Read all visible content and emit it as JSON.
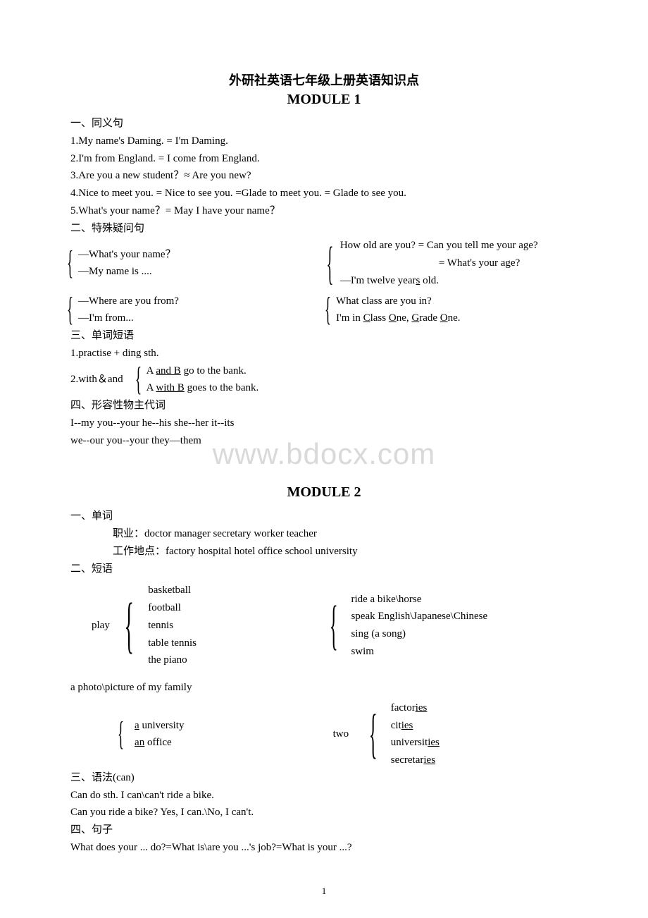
{
  "doc_title_cn": "外研社英语七年级上册英语知识点",
  "module1_title": "MODULE 1",
  "module2_title": "MODULE 2",
  "watermark": "www.bdocx.com",
  "page_number": "1",
  "m1": {
    "sec1_label": "一、同义句",
    "s1_1": "1.My name's Daming. = I'm Daming.",
    "s1_2": "2.I'm from England. = I come from England.",
    "s1_3": "3.Are you a new student？≈ Are you new?",
    "s1_4": "4.Nice to meet you. = Nice to see you. =Glade to meet you. = Glade to see you.",
    "s1_5": "5.What's your name？= May I have your name？",
    "sec2_label": "二、特殊疑问句",
    "q1a": "—What's your name？",
    "q1b": "—My name is ....",
    "q2a": "How old are you? = Can you tell me your age?",
    "q2b": "= What's your age?",
    "q2c_pre": "—I'm twelve year",
    "q2c_u": "s",
    "q2c_post": " old.",
    "q3a": "—Where are you from?",
    "q3b": "—I'm from...",
    "q4a": "What class are you in?",
    "q4b_pre": "I'm in ",
    "q4b_c": "C",
    "q4b_mid1": "lass ",
    "q4b_o1": "O",
    "q4b_mid2": "ne, ",
    "q4b_g": "G",
    "q4b_mid3": "rade ",
    "q4b_o2": "O",
    "q4b_end": "ne.",
    "sec3_label": "三、单词短语",
    "s3_1": "1.practise + ding sth.",
    "s3_2_pre": "2.with＆and",
    "s3_2a_pre": "A ",
    "s3_2a_u": "and B",
    "s3_2a_post": " go to the bank.",
    "s3_2b_pre": "A ",
    "s3_2b_u": "with B",
    "s3_2b_post": " goes to the bank.",
    "sec4_label": "四、形容性物主代词",
    "s4_1": "I--my   you--your   he--his   she--her   it--its",
    "s4_2": "we--our   you--your   they—them"
  },
  "m2": {
    "sec1_label": "一、单词",
    "s1_1_label": "职业：",
    "s1_1": "doctor manager secretary worker teacher",
    "s1_2_label": "工作地点：",
    "s1_2": "factory hospital hotel office school university",
    "sec2_label": "二、短语",
    "play_label": "play",
    "play_items": [
      "basketball",
      "football",
      "tennis",
      "table tennis",
      "the piano"
    ],
    "verb_items": [
      "ride a bike\\horse",
      "speak English\\Japanese\\Chinese",
      "sing (a song)",
      "swim"
    ],
    "photo_line": "a photo\\picture of my family",
    "art_a_u": "a",
    "art_a_post": " university",
    "art_an_u": "an",
    "art_an_post": " office",
    "two_label": "two",
    "two_items": [
      {
        "pre": "factor",
        "u": "ies"
      },
      {
        "pre": "cit",
        "u": "ies"
      },
      {
        "pre": "universit",
        "u": "ies"
      },
      {
        "pre": "secretar",
        "u": "ies"
      }
    ],
    "sec3_label": "三、语法(can)",
    "s3_1": "Can do sth.       I can\\can't ride a bike.",
    "s3_2": "Can you ride a bike?        Yes, I can.\\No, I can't.",
    "sec4_label": "四、句子",
    "s4_1": "What does your ... do?=What is\\are you ...'s job?=What is your ...?"
  },
  "style": {
    "bg": "#ffffff",
    "text": "#000000",
    "watermark_color": "#d9d9d9",
    "body_font_size": 15,
    "title_font_size": 18,
    "module_font_size": 20
  }
}
